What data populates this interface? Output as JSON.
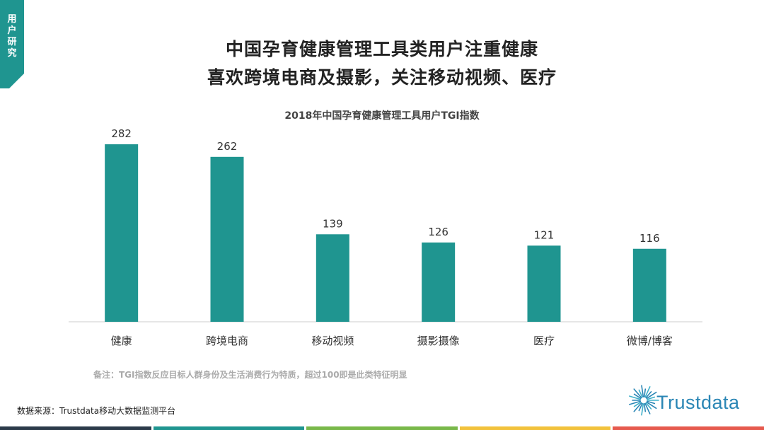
{
  "section_tab": {
    "label": "用户研究",
    "color": "#1f9590"
  },
  "title_line1": "中国孕育健康管理工具类用户注重健康",
  "title_line2": "喜欢跨境电商及摄影，关注移动视频、医疗",
  "chart_data": {
    "type": "bar",
    "title": "2018年中国孕育健康管理工具用户TGI指数",
    "categories": [
      "健康",
      "跨境电商",
      "移动视频",
      "摄影摄像",
      "医疗",
      "微博/博客"
    ],
    "values": [
      282,
      262,
      139,
      126,
      121,
      116
    ],
    "ylim": [
      0,
      282
    ],
    "bar_color": "#1f9590",
    "grid": false,
    "legend": "none"
  },
  "note": "备注：TGI指数反应目标人群身份及生活消费行为特质，超过100即是此类特征明显",
  "source": "数据来源：Trustdata移动大数据监测平台",
  "logo": {
    "text": "Trustdata",
    "icon": "sunburst-logo-icon",
    "color": "#2a86b5"
  },
  "bottom_bar_colors": [
    "#2b3a4a",
    "#1f9590",
    "#79b84a",
    "#f2c23c",
    "#e65a4e"
  ]
}
